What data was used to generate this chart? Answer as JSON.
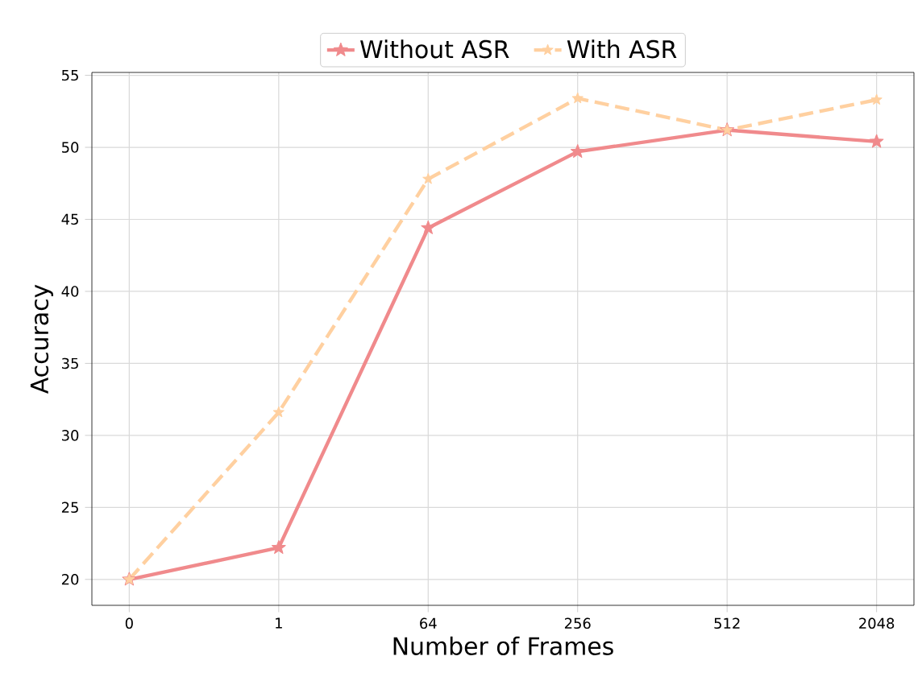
{
  "chart_data": {
    "type": "line",
    "xlabel": "Number of Frames",
    "ylabel": "Accuracy",
    "categories": [
      "0",
      "1",
      "64",
      "256",
      "512",
      "2048"
    ],
    "series": [
      {
        "name": "Without ASR",
        "color": "#f08a8c",
        "line_style": "solid",
        "values": [
          20.0,
          22.2,
          44.4,
          49.7,
          51.2,
          50.4
        ]
      },
      {
        "name": "With ASR",
        "color": "#ffd0a0",
        "line_style": "dashed",
        "values": [
          20.0,
          31.6,
          47.8,
          53.4,
          51.2,
          53.3
        ]
      }
    ],
    "ylim": [
      18.2,
      55.2
    ],
    "yticks": [
      20,
      25,
      30,
      35,
      40,
      45,
      50,
      55
    ],
    "grid": true,
    "legend": "top",
    "marker": "star"
  }
}
